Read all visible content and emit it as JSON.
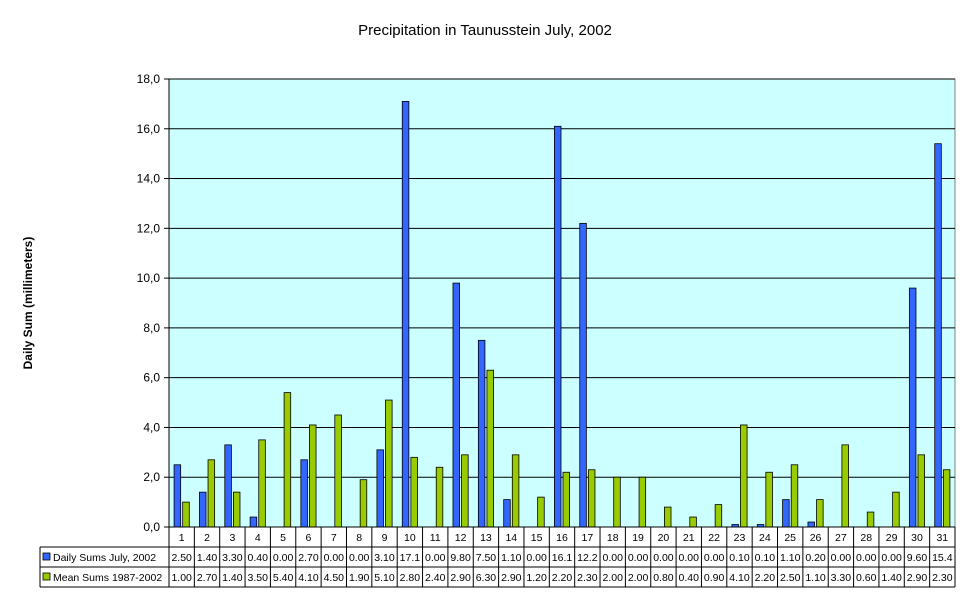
{
  "chart_data": {
    "type": "bar",
    "title": "Precipitation in Taunusstein July, 2002",
    "xlabel": "",
    "ylabel": "Daily Sum (millimeters)",
    "ylim": [
      0,
      18
    ],
    "yticks": [
      "0,0",
      "2,0",
      "4,0",
      "6,0",
      "8,0",
      "10,0",
      "12,0",
      "14,0",
      "16,0",
      "18,0"
    ],
    "grid": true,
    "legend": "left-of-data-table",
    "categories": [
      "1",
      "2",
      "3",
      "4",
      "5",
      "6",
      "7",
      "8",
      "9",
      "10",
      "11",
      "12",
      "13",
      "14",
      "15",
      "16",
      "17",
      "18",
      "19",
      "20",
      "21",
      "22",
      "23",
      "24",
      "25",
      "26",
      "27",
      "28",
      "29",
      "30",
      "31"
    ],
    "series": [
      {
        "name": "Daily Sums July, 2002",
        "color": "#3366ff",
        "values": [
          2.5,
          1.4,
          3.3,
          0.4,
          0.0,
          2.7,
          0.0,
          0.0,
          3.1,
          17.1,
          0.0,
          9.8,
          7.5,
          1.1,
          0.0,
          16.1,
          12.2,
          0.0,
          0.0,
          0.0,
          0.0,
          0.0,
          0.1,
          0.1,
          1.1,
          0.2,
          0.0,
          0.0,
          0.0,
          9.6,
          15.4
        ],
        "labels": [
          "2.50",
          "1.40",
          "3.30",
          "0.40",
          "0.00",
          "2.70",
          "0.00",
          "0.00",
          "3.10",
          "17.1",
          "0.00",
          "9.80",
          "7.50",
          "1.10",
          "0.00",
          "16.1",
          "12.2",
          "0.00",
          "0.00",
          "0.00",
          "0.00",
          "0.00",
          "0.10",
          "0.10",
          "1.10",
          "0.20",
          "0.00",
          "0.00",
          "0.00",
          "9.60",
          "15.4"
        ]
      },
      {
        "name": "Mean Sums 1987-2002",
        "color": "#99cc00",
        "values": [
          1.0,
          2.7,
          1.4,
          3.5,
          5.4,
          4.1,
          4.5,
          1.9,
          5.1,
          2.8,
          2.4,
          2.9,
          6.3,
          2.9,
          1.2,
          2.2,
          2.3,
          2.0,
          2.0,
          0.8,
          0.4,
          0.9,
          4.1,
          2.2,
          2.5,
          1.1,
          3.3,
          0.6,
          1.4,
          2.9,
          2.3
        ],
        "labels": [
          "1.00",
          "2.70",
          "1.40",
          "3.50",
          "5.40",
          "4.10",
          "4.50",
          "1.90",
          "5.10",
          "2.80",
          "2.40",
          "2.90",
          "6.30",
          "2.90",
          "1.20",
          "2.20",
          "2.30",
          "2.00",
          "2.00",
          "0.80",
          "0.40",
          "0.90",
          "4.10",
          "2.20",
          "2.50",
          "1.10",
          "3.30",
          "0.60",
          "1.40",
          "2.90",
          "2.30"
        ]
      }
    ],
    "plot_background": "#ccffff"
  }
}
